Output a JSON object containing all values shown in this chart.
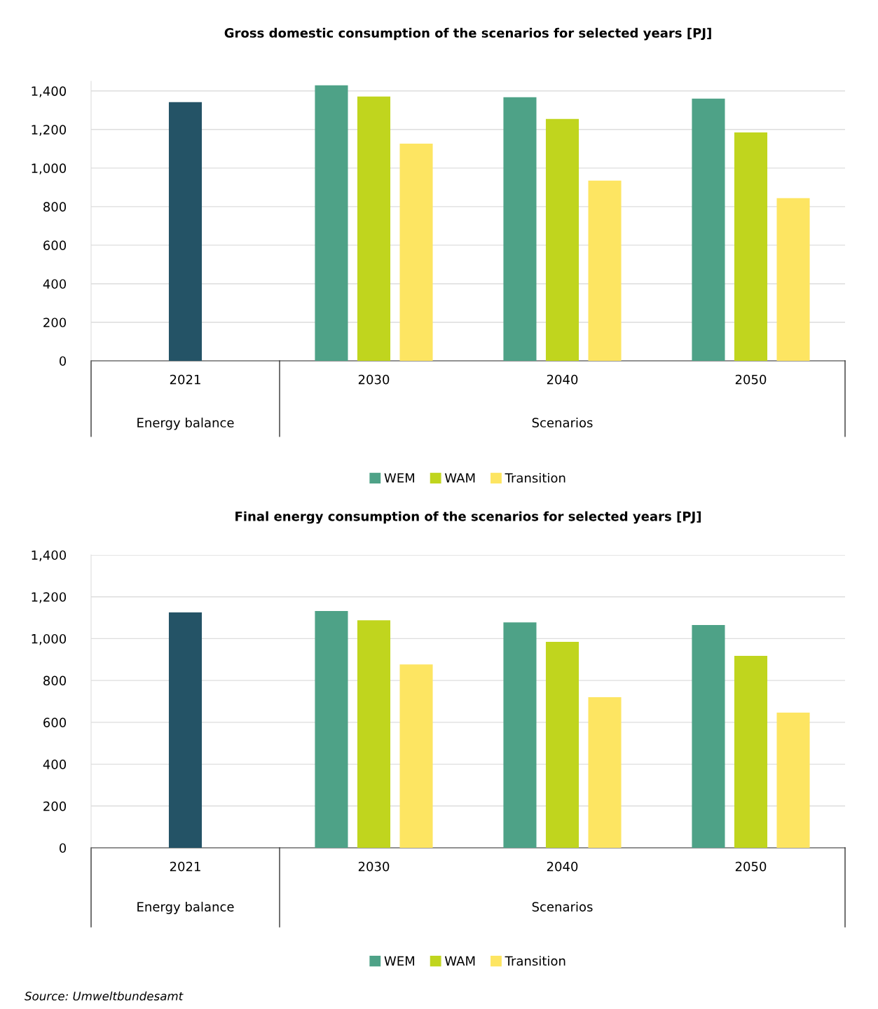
{
  "chart_data": [
    {
      "type": "bar",
      "title": "Gross domestic consumption of the scenarios for selected years [PJ]",
      "categories": [
        "2021",
        "2030",
        "2040",
        "2050"
      ],
      "series": [
        {
          "color": "#245366",
          "values": [
            1342,
            null,
            null,
            null
          ]
        },
        {
          "name": "WEM",
          "color": "#4ea287",
          "values": [
            null,
            1429,
            1367,
            1360
          ]
        },
        {
          "name": "WAM",
          "color": "#c0d51e",
          "values": [
            null,
            1371,
            1255,
            1185
          ]
        },
        {
          "name": "Transition",
          "color": "#fde562",
          "values": [
            null,
            1127,
            935,
            844
          ]
        }
      ],
      "ylim": [
        0,
        1450
      ],
      "yticks": [
        {
          "value": 0,
          "label": "0"
        },
        {
          "value": 200,
          "label": "200"
        },
        {
          "value": 400,
          "label": "400"
        },
        {
          "value": 600,
          "label": "600"
        },
        {
          "value": 800,
          "label": "800"
        },
        {
          "value": 1000,
          "label": "1,000"
        },
        {
          "value": 1200,
          "label": "1,200"
        },
        {
          "value": 1400,
          "label": "1,400"
        }
      ],
      "grid": "y",
      "legend": "bottom",
      "annotations": [
        "Energy balance",
        "Scenarios"
      ]
    },
    {
      "type": "bar",
      "title": "Final energy consumption of the scenarios for selected years [PJ]",
      "categories": [
        "2021",
        "2030",
        "2040",
        "2050"
      ],
      "series": [
        {
          "color": "#245366",
          "values": [
            1125,
            null,
            null,
            null
          ]
        },
        {
          "name": "WEM",
          "color": "#4ea287",
          "values": [
            null,
            1132,
            1078,
            1065
          ]
        },
        {
          "name": "WAM",
          "color": "#c0d51e",
          "values": [
            null,
            1088,
            985,
            918
          ]
        },
        {
          "name": "Transition",
          "color": "#fde562",
          "values": [
            null,
            877,
            720,
            646
          ]
        }
      ],
      "ylim": [
        0,
        1400
      ],
      "yticks": [
        {
          "value": 0,
          "label": "0"
        },
        {
          "value": 200,
          "label": "200"
        },
        {
          "value": 400,
          "label": "400"
        },
        {
          "value": 600,
          "label": "600"
        },
        {
          "value": 800,
          "label": "800"
        },
        {
          "value": 1000,
          "label": "1,000"
        },
        {
          "value": 1200,
          "label": "1,200"
        },
        {
          "value": 1400,
          "label": "1,400"
        }
      ],
      "grid": "y",
      "legend": "bottom",
      "annotations": [
        "Energy balance",
        "Scenarios",
        "Source: Umweltbundesamt"
      ]
    }
  ]
}
